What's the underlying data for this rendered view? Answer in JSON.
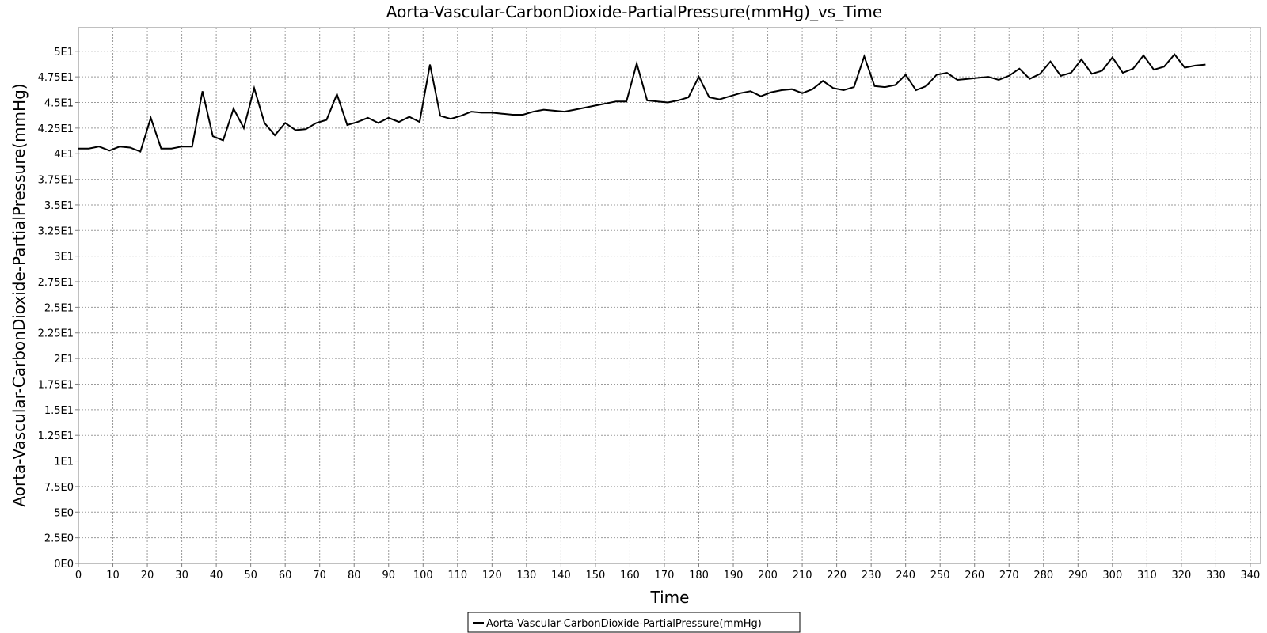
{
  "chart_data": {
    "type": "line",
    "title": "Aorta-Vascular-CarbonDioxide-PartialPressure(mmHg)_vs_Time",
    "xlabel": "Time",
    "ylabel": "Aorta-Vascular-CarbonDioxide-PartialPressure(mmHg)",
    "xlim": [
      0,
      343
    ],
    "ylim": [
      0,
      52.3
    ],
    "x_ticks": [
      0,
      10,
      20,
      30,
      40,
      50,
      60,
      70,
      80,
      90,
      100,
      110,
      120,
      130,
      140,
      150,
      160,
      170,
      180,
      190,
      200,
      210,
      220,
      230,
      240,
      250,
      260,
      270,
      280,
      290,
      300,
      310,
      320,
      330,
      340
    ],
    "x_tick_labels": [
      "0",
      "10",
      "20",
      "30",
      "40",
      "50",
      "60",
      "70",
      "80",
      "90",
      "100",
      "110",
      "120",
      "130",
      "140",
      "150",
      "160",
      "170",
      "180",
      "190",
      "200",
      "210",
      "220",
      "230",
      "240",
      "250",
      "260",
      "270",
      "280",
      "290",
      "300",
      "310",
      "320",
      "330",
      "340"
    ],
    "y_ticks": [
      0,
      2.5,
      5,
      7.5,
      10,
      12.5,
      15,
      17.5,
      20,
      22.5,
      25,
      27.5,
      30,
      32.5,
      35,
      37.5,
      40,
      42.5,
      45,
      47.5,
      50
    ],
    "y_tick_labels": [
      "0E0",
      "2.5E0",
      "5E0",
      "7.5E0",
      "1E1",
      "1.25E1",
      "1.5E1",
      "1.75E1",
      "2E1",
      "2.25E1",
      "2.5E1",
      "2.75E1",
      "3E1",
      "3.25E1",
      "3.5E1",
      "3.75E1",
      "4E1",
      "4.25E1",
      "4.5E1",
      "4.75E1",
      "5E1"
    ],
    "grid": true,
    "legend_position": "bottom-center",
    "series": [
      {
        "name": "Aorta-Vascular-CarbonDioxide-PartialPressure(mmHg)",
        "color": "#000000",
        "x": [
          0,
          3,
          6,
          9,
          12,
          15,
          18,
          21,
          24,
          27,
          30,
          33,
          36,
          39,
          42,
          45,
          48,
          51,
          54,
          57,
          60,
          63,
          66,
          69,
          72,
          75,
          78,
          81,
          84,
          87,
          90,
          93,
          96,
          99,
          102,
          105,
          108,
          111,
          114,
          117,
          120,
          123,
          126,
          129,
          132,
          135,
          138,
          141,
          144,
          147,
          150,
          153,
          156,
          159,
          162,
          165,
          168,
          171,
          174,
          177,
          180,
          183,
          186,
          189,
          192,
          195,
          198,
          201,
          204,
          207,
          210,
          213,
          216,
          219,
          222,
          225,
          228,
          231,
          234,
          237,
          240,
          243,
          246,
          249,
          252,
          255,
          258,
          261,
          264,
          267,
          270,
          273,
          276,
          279,
          282,
          285,
          288,
          291,
          294,
          297,
          300,
          303,
          306,
          309,
          312,
          315,
          318,
          321,
          324,
          327
        ],
        "values": [
          40.5,
          40.5,
          40.7,
          40.3,
          40.7,
          40.6,
          40.2,
          43.5,
          40.5,
          40.5,
          40.7,
          40.7,
          46.1,
          41.7,
          41.3,
          44.4,
          42.5,
          46.4,
          43.0,
          41.8,
          43.0,
          42.3,
          42.4,
          43.0,
          43.3,
          45.8,
          42.8,
          43.1,
          43.5,
          43.0,
          43.5,
          43.1,
          43.6,
          43.1,
          48.7,
          43.7,
          43.4,
          43.7,
          44.1,
          44.0,
          44.0,
          43.9,
          43.8,
          43.8,
          44.1,
          44.3,
          44.2,
          44.1,
          44.3,
          44.5,
          44.7,
          44.9,
          45.1,
          45.1,
          48.8,
          45.2,
          45.1,
          45.0,
          45.2,
          45.5,
          47.5,
          45.5,
          45.3,
          45.6,
          45.9,
          46.1,
          45.6,
          46.0,
          46.2,
          46.3,
          45.9,
          46.3,
          47.1,
          46.4,
          46.2,
          46.5,
          49.5,
          46.6,
          46.5,
          46.7,
          47.7,
          46.2,
          46.6,
          47.7,
          47.9,
          47.2,
          47.3,
          47.4,
          47.5,
          47.2,
          47.6,
          48.3,
          47.3,
          47.8,
          49.0,
          47.6,
          47.9,
          49.2,
          47.8,
          48.1,
          49.4,
          47.9,
          48.3,
          49.6,
          48.2,
          48.5,
          49.7,
          48.4,
          48.6,
          48.7
        ]
      }
    ]
  }
}
